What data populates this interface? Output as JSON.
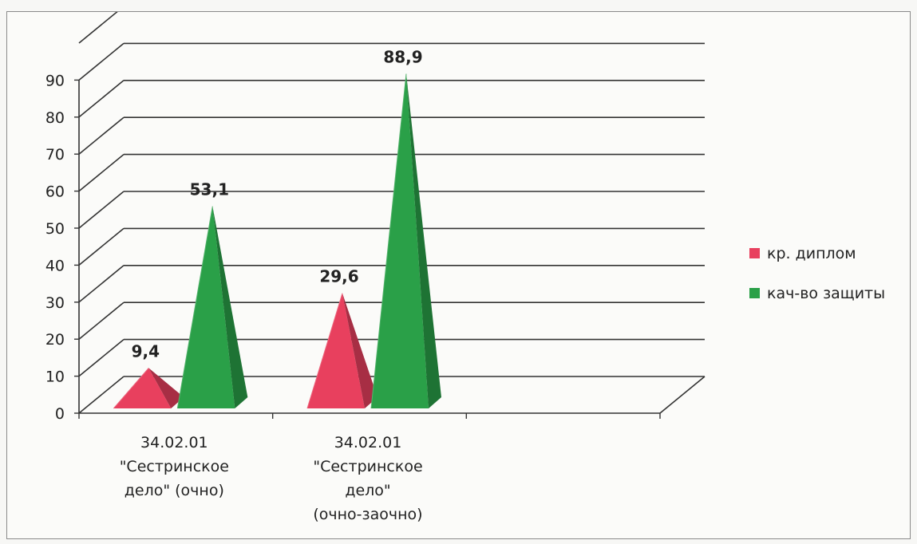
{
  "chart_data": {
    "type": "bar",
    "title": "",
    "xlabel": "",
    "ylabel": "",
    "ylim": [
      0,
      90
    ],
    "yticks": [
      0,
      10,
      20,
      30,
      40,
      50,
      60,
      70,
      80,
      90
    ],
    "categories": [
      [
        "34.02.01",
        "\"Сестринское",
        "дело\" (очно)"
      ],
      [
        "34.02.01",
        "\"Сестринское",
        "дело\"",
        "(очно-заочно)"
      ]
    ],
    "series": [
      {
        "name": "кр. диплом",
        "color": "#e8405e",
        "values": [
          9.4,
          29.6
        ],
        "labels": [
          "9,4",
          "29,6"
        ]
      },
      {
        "name": "кач-во защиты",
        "color": "#2aa048",
        "values": [
          53.1,
          88.9
        ],
        "labels": [
          "53,1",
          "88,9"
        ]
      }
    ],
    "grid": true,
    "legend": "right"
  }
}
